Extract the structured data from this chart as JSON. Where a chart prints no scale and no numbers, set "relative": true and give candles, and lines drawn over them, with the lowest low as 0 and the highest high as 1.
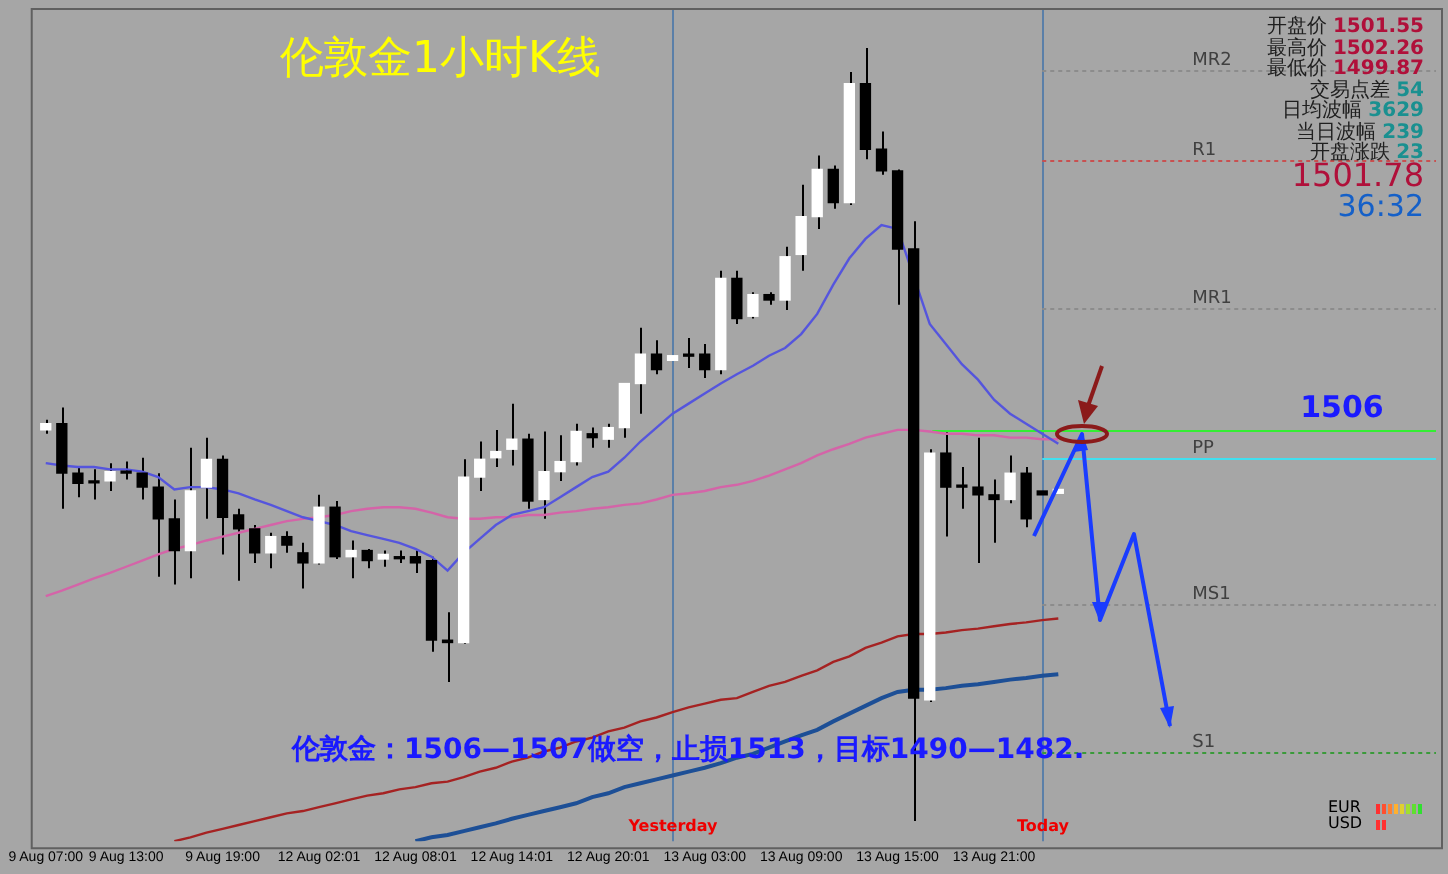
{
  "chart_data": {
    "type": "candlestick",
    "relative": true,
    "marker": "none",
    "title": "伦敦金1小时K线",
    "categories": [
      "9 Aug 07:00",
      null,
      null,
      null,
      null,
      "9 Aug 13:00",
      null,
      null,
      null,
      null,
      null,
      "9 Aug 19:00",
      null,
      null,
      null,
      null,
      null,
      "12 Aug 02:01",
      null,
      null,
      null,
      null,
      null,
      "12 Aug 08:01",
      null,
      null,
      null,
      null,
      null,
      "12 Aug 14:01",
      null,
      null,
      null,
      null,
      null,
      "12 Aug 20:01",
      null,
      null,
      null,
      null,
      null,
      "13 Aug 03:00",
      null,
      null,
      null,
      null,
      null,
      "13 Aug 09:00",
      null,
      null,
      null,
      null,
      null,
      "13 Aug 15:00",
      null,
      null,
      null,
      null,
      null,
      "13 Aug 21:00",
      null,
      null,
      null,
      null,
      null,
      null,
      null,
      null,
      null,
      null,
      null,
      null,
      null,
      null,
      null,
      null,
      null,
      null,
      null,
      null,
      null,
      null,
      null,
      null,
      null,
      null,
      null
    ],
    "ohlc": [
      [
        0.506,
        0.519,
        0.501,
        0.514
      ],
      [
        0.514,
        0.535,
        0.404,
        0.45
      ],
      [
        0.45,
        0.458,
        0.419,
        0.437
      ],
      [
        0.44,
        0.455,
        0.416,
        0.44
      ],
      [
        0.44,
        0.463,
        0.427,
        0.452
      ],
      [
        0.452,
        0.465,
        0.442,
        0.45
      ],
      [
        0.45,
        0.47,
        0.416,
        0.432
      ],
      [
        0.432,
        0.45,
        0.316,
        0.391
      ],
      [
        0.391,
        0.416,
        0.306,
        0.35
      ],
      [
        0.35,
        0.483,
        0.314,
        0.427
      ],
      [
        0.432,
        0.496,
        0.391,
        0.468
      ],
      [
        0.468,
        0.473,
        0.345,
        0.393
      ],
      [
        0.396,
        0.404,
        0.311,
        0.378
      ],
      [
        0.378,
        0.383,
        0.334,
        0.347
      ],
      [
        0.347,
        0.373,
        0.327,
        0.368
      ],
      [
        0.368,
        0.375,
        0.347,
        0.357
      ],
      [
        0.347,
        0.36,
        0.301,
        0.334
      ],
      [
        0.334,
        0.422,
        0.332,
        0.406
      ],
      [
        0.406,
        0.414,
        0.339,
        0.342
      ],
      [
        0.342,
        0.363,
        0.314,
        0.35
      ],
      [
        0.35,
        0.352,
        0.327,
        0.337
      ],
      [
        0.339,
        0.35,
        0.329,
        0.345
      ],
      [
        0.342,
        0.35,
        0.334,
        0.342
      ],
      [
        0.342,
        0.35,
        0.321,
        0.334
      ],
      [
        0.337,
        0.342,
        0.219,
        0.234
      ],
      [
        0.234,
        0.27,
        0.18,
        0.231
      ],
      [
        0.231,
        0.468,
        0.229,
        0.445
      ],
      [
        0.445,
        0.491,
        0.427,
        0.468
      ],
      [
        0.47,
        0.506,
        0.458,
        0.478
      ],
      [
        0.481,
        0.54,
        0.46,
        0.494
      ],
      [
        0.494,
        0.501,
        0.404,
        0.414
      ],
      [
        0.416,
        0.504,
        0.391,
        0.452
      ],
      [
        0.452,
        0.499,
        0.44,
        0.465
      ],
      [
        0.465,
        0.514,
        0.46,
        0.504
      ],
      [
        0.501,
        0.509,
        0.483,
        0.496
      ],
      [
        0.494,
        0.514,
        0.483,
        0.509
      ],
      [
        0.509,
        0.566,
        0.496,
        0.566
      ],
      [
        0.566,
        0.638,
        0.527,
        0.604
      ],
      [
        0.604,
        0.622,
        0.578,
        0.584
      ],
      [
        0.596,
        0.602,
        0.596,
        0.602
      ],
      [
        0.604,
        0.625,
        0.586,
        0.604
      ],
      [
        0.604,
        0.617,
        0.573,
        0.584
      ],
      [
        0.584,
        0.712,
        0.578,
        0.702
      ],
      [
        0.702,
        0.712,
        0.643,
        0.65
      ],
      [
        0.653,
        0.684,
        0.65,
        0.681
      ],
      [
        0.681,
        0.684,
        0.668,
        0.674
      ],
      [
        0.674,
        0.743,
        0.661,
        0.73
      ],
      [
        0.733,
        0.823,
        0.712,
        0.782
      ],
      [
        0.782,
        0.861,
        0.766,
        0.843
      ],
      [
        0.843,
        0.848,
        0.792,
        0.8
      ],
      [
        0.8,
        0.969,
        0.797,
        0.954
      ],
      [
        0.954,
        1,
        0.856,
        0.869
      ],
      [
        0.869,
        0.892,
        0.836,
        0.841
      ],
      [
        0.841,
        0.843,
        0.668,
        0.74
      ],
      [
        0.74,
        0.776,
        0,
        0.159
      ],
      [
        0.157,
        0.481,
        0.154,
        0.476
      ],
      [
        0.476,
        0.506,
        0.368,
        0.432
      ],
      [
        0.434,
        0.458,
        0.404,
        0.432
      ],
      [
        0.432,
        0.496,
        0.334,
        0.422
      ],
      [
        0.422,
        0.442,
        0.36,
        0.416
      ],
      [
        0.416,
        0.473,
        0.411,
        0.45
      ],
      [
        0.45,
        0.458,
        0.38,
        0.391
      ],
      [
        0.427,
        0.427,
        0.422,
        0.422
      ],
      [
        0.424,
        0.429,
        0.424,
        0.429
      ],
      null,
      null,
      null,
      null,
      null,
      null,
      null,
      null,
      null,
      null,
      null,
      null,
      null,
      null,
      null,
      null,
      null,
      null,
      null,
      null,
      null,
      null,
      null
    ],
    "series": [
      {
        "type": "line",
        "color": "#5555dd",
        "values": [
          0.463,
          0.46,
          0.458,
          0.458,
          0.455,
          0.455,
          0.452,
          0.445,
          0.429,
          0.432,
          0.432,
          0.429,
          0.424,
          0.416,
          0.409,
          0.401,
          0.393,
          0.388,
          0.383,
          0.375,
          0.37,
          0.365,
          0.36,
          0.352,
          0.342,
          0.324,
          0.347,
          0.365,
          0.383,
          0.396,
          0.401,
          0.406,
          0.419,
          0.432,
          0.445,
          0.452,
          0.47,
          0.491,
          0.509,
          0.527,
          0.54,
          0.553,
          0.566,
          0.578,
          0.589,
          0.602,
          0.612,
          0.63,
          0.656,
          0.694,
          0.728,
          0.753,
          0.771,
          0.766,
          null,
          0.643,
          0.617,
          0.591,
          0.571,
          0.545,
          0.527,
          0.514,
          0.501,
          0.488,
          null,
          null,
          null,
          null,
          null,
          null,
          null,
          null,
          null,
          null,
          null,
          null,
          null,
          null,
          null,
          null,
          null,
          null,
          null,
          null,
          null,
          null,
          null
        ]
      },
      {
        "type": "line",
        "color": "#d464a8",
        "values": [
          0.291,
          0.298,
          0.306,
          0.314,
          0.321,
          0.329,
          0.337,
          0.345,
          0.352,
          0.357,
          0.363,
          0.368,
          0.373,
          0.378,
          0.383,
          0.388,
          0.391,
          0.393,
          0.396,
          0.401,
          0.404,
          0.406,
          0.406,
          0.404,
          0.399,
          0.393,
          0.391,
          0.391,
          0.393,
          0.393,
          0.396,
          0.396,
          0.399,
          0.401,
          0.404,
          0.406,
          0.409,
          0.411,
          0.416,
          0.422,
          0.424,
          0.427,
          0.432,
          0.435,
          0.44,
          0.447,
          0.455,
          0.463,
          0.473,
          0.481,
          0.488,
          0.496,
          0.501,
          0.506,
          0.506,
          0.504,
          0.501,
          0.501,
          0.499,
          0.499,
          0.496,
          0.496,
          0.494,
          0.494,
          null,
          null,
          null,
          null,
          null,
          null,
          null,
          null,
          null,
          null,
          null,
          null,
          null,
          null,
          null,
          null,
          null,
          null,
          null,
          null,
          null,
          null,
          null
        ]
      },
      {
        "type": "line",
        "color": "#a52222",
        "values": [
          null,
          null,
          null,
          null,
          null,
          null,
          null,
          null,
          -0.026,
          -0.021,
          -0.015,
          -0.01,
          -0.005,
          0,
          0.005,
          0.01,
          0.013,
          0.018,
          0.023,
          0.028,
          0.033,
          0.036,
          0.041,
          0.044,
          0.049,
          0.051,
          0.057,
          0.064,
          0.069,
          0.077,
          0.082,
          0.09,
          0.095,
          0.103,
          0.108,
          0.116,
          0.121,
          0.129,
          0.134,
          0.141,
          0.147,
          0.152,
          0.157,
          0.159,
          0.167,
          0.175,
          0.18,
          0.188,
          0.195,
          0.206,
          0.213,
          0.224,
          0.231,
          0.239,
          0.242,
          0.242,
          0.244,
          0.247,
          0.249,
          0.252,
          0.255,
          0.257,
          0.26,
          0.262,
          null,
          null,
          null,
          null,
          null,
          null,
          null,
          null,
          null,
          null,
          null,
          null,
          null,
          null,
          null,
          null,
          null,
          null,
          null,
          null,
          null,
          null,
          null
        ]
      },
      {
        "type": "line",
        "color": "#1d4f96",
        "values": [
          null,
          null,
          null,
          null,
          null,
          null,
          null,
          null,
          null,
          null,
          null,
          null,
          null,
          null,
          null,
          null,
          null,
          null,
          null,
          null,
          null,
          null,
          null,
          -0.026,
          -0.021,
          -0.018,
          -0.013,
          -0.008,
          -0.003,
          0.003,
          0.008,
          0.013,
          0.018,
          0.023,
          0.031,
          0.036,
          0.044,
          0.049,
          0.054,
          0.059,
          0.064,
          0.069,
          0.075,
          0.082,
          0.087,
          0.095,
          0.103,
          0.111,
          0.118,
          0.129,
          0.139,
          0.149,
          0.159,
          0.167,
          0.17,
          0.17,
          0.172,
          0.175,
          0.177,
          0.18,
          0.183,
          0.185,
          0.188,
          0.19,
          null,
          null,
          null,
          null,
          null,
          null,
          null,
          null,
          null,
          null,
          null,
          null,
          null,
          null,
          null,
          null,
          null,
          null,
          null,
          null,
          null,
          null,
          null
        ]
      }
    ],
    "ref_lines": [
      {
        "axis": "y",
        "value": 0.972,
        "label": "MR2",
        "color": "#8c8c8c",
        "line_style": "dotted"
      },
      {
        "axis": "y",
        "value": 0.854,
        "label": "R1",
        "color": "#c85050",
        "line_style": "dotted"
      },
      {
        "axis": "y",
        "value": 0.663,
        "label": "MR1",
        "color": "#8c8c8c",
        "line_style": "dotted"
      },
      {
        "axis": "y",
        "value": 0.47,
        "label": "PP",
        "color": "#40e0f0",
        "line_style": "solid"
      },
      {
        "axis": "y",
        "value": 0.28,
        "label": "MS1",
        "color": "#8c8c8c",
        "line_style": "dotted"
      },
      {
        "axis": "y",
        "value": 0.09,
        "label": "S1",
        "color": "#3a9a3a",
        "line_style": "dotted"
      },
      {
        "axis": "y",
        "value": 0.506,
        "color": "#33ee33",
        "line_style": "solid"
      }
    ],
    "annotations": [
      "伦敦金：1506—1507做空，止损1513，目标1490—1482.",
      "开盘价 1501.55",
      "最高价 1502.26",
      "最低价 1499.87",
      "交易点差 54",
      "日均波幅 3629",
      "当日波幅 239",
      "开盘涨跌 23",
      "1501.78",
      "36:32",
      "EUR",
      "USD",
      "Yesterday",
      "Today",
      {
        "text": "1506",
        "y": 0.506
      }
    ]
  }
}
